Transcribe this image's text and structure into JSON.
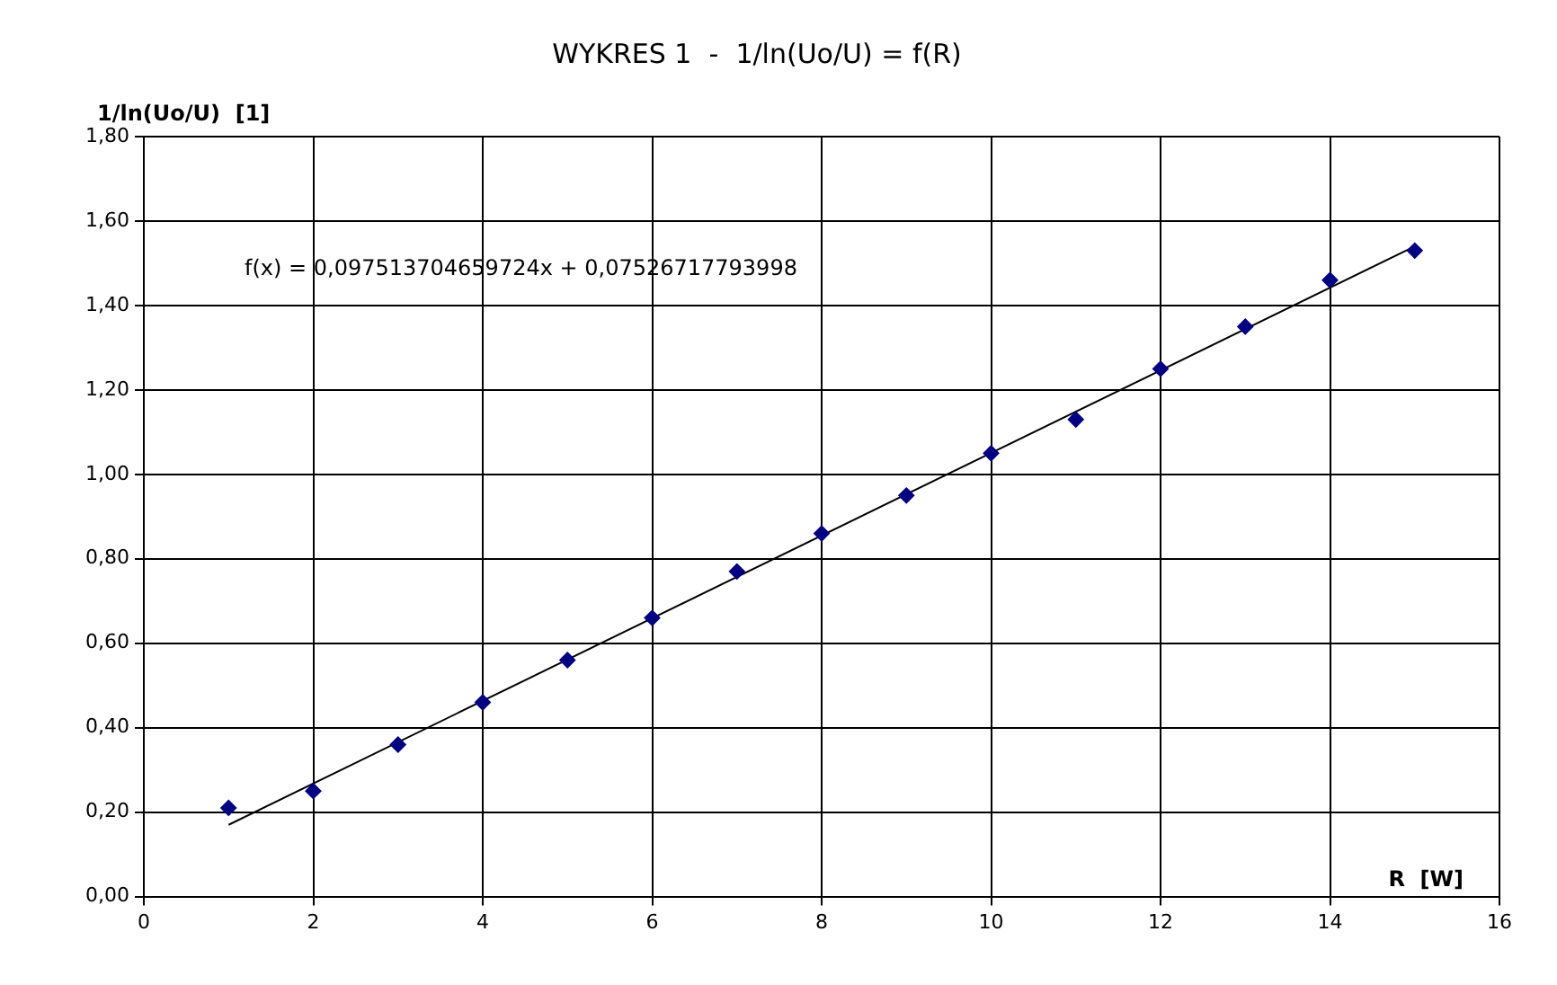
{
  "chart_data": {
    "type": "scatter",
    "title": "WYKRES 1  -  1/ln(Uo/U) = f(R)",
    "xlabel": "R  [W]",
    "ylabel": "1/ln(Uo/U)  [1]",
    "x": [
      1,
      2,
      3,
      4,
      5,
      6,
      7,
      8,
      9,
      10,
      11,
      12,
      13,
      14,
      15
    ],
    "series": [
      {
        "type": "scatter",
        "color": "#000080",
        "marker": "diamond",
        "values": [
          0.21,
          0.25,
          0.36,
          0.46,
          0.56,
          0.66,
          0.77,
          0.86,
          0.95,
          1.05,
          1.13,
          1.25,
          1.35,
          1.46,
          1.53
        ]
      },
      {
        "type": "line",
        "color": "#000000",
        "marker": "none",
        "line_style": "solid",
        "x": [
          1,
          15
        ],
        "values": [
          0.17,
          1.54
        ]
      }
    ],
    "annotations": [
      "f(x) = 0,097513704659724x + 0,07526717793998"
    ],
    "xlim": [
      0,
      16
    ],
    "xticks": [
      0,
      2,
      4,
      6,
      8,
      10,
      12,
      14,
      16
    ],
    "ylim": [
      0,
      1.8
    ],
    "yticks": [
      {
        "value": 0,
        "label": "0,00"
      },
      {
        "value": 0.2,
        "label": "0,20"
      },
      {
        "value": 0.4,
        "label": "0,40"
      },
      {
        "value": 0.6,
        "label": "0,60"
      },
      {
        "value": 0.8,
        "label": "0,80"
      },
      {
        "value": 1,
        "label": "1,00"
      },
      {
        "value": 1.2,
        "label": "1,20"
      },
      {
        "value": 1.4,
        "label": "1,40"
      },
      {
        "value": 1.6,
        "label": "1,60"
      },
      {
        "value": 1.8,
        "label": "1,80"
      }
    ],
    "grid": true,
    "legend": false
  }
}
